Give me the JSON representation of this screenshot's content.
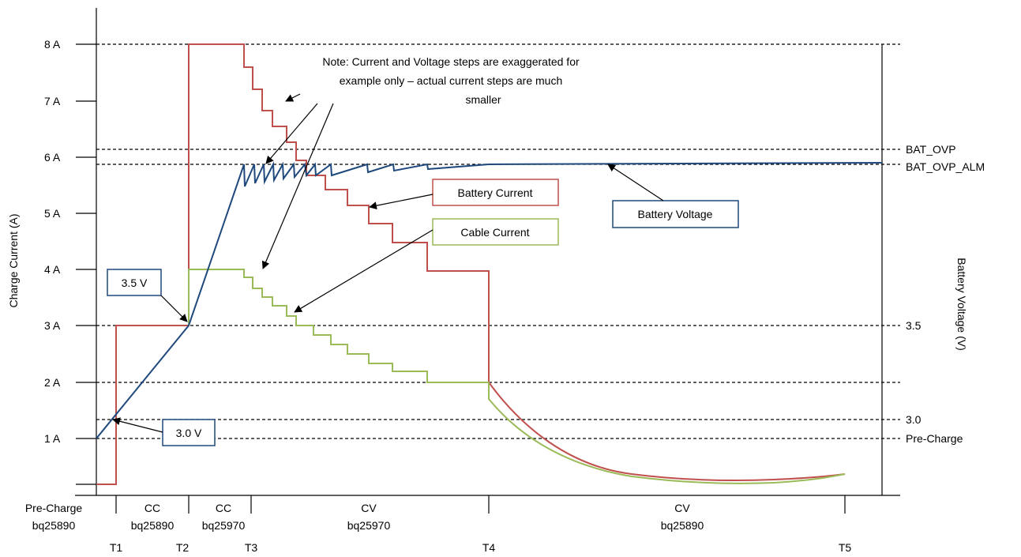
{
  "chart_data": {
    "type": "line",
    "y_label_left": "Charge Current (A)",
    "y_label_right": "Battery Voltage (V)",
    "y_ticks_left": [
      "8 A",
      "7 A",
      "6 A",
      "5 A",
      "4 A",
      "3 A",
      "2 A",
      "1 A"
    ],
    "right_labels": [
      "BAT_OVP",
      "BAT_OVP_ALM",
      "3.5",
      "3.0",
      "Pre-Charge"
    ],
    "phases": [
      {
        "line1": "Pre-Charge",
        "line2": "bq25890"
      },
      {
        "line1": "CC",
        "line2": "bq25890"
      },
      {
        "line1": "CC",
        "line2": "bq25970"
      },
      {
        "line1": "CV",
        "line2": "bq25970"
      },
      {
        "line1": "CV",
        "line2": "bq25890"
      }
    ],
    "time_labels": [
      "T1",
      "T2",
      "T3",
      "T4",
      "T5"
    ],
    "note": [
      "Note: Current and Voltage steps are exaggerated for",
      "example only – actual current steps are much",
      "smaller"
    ],
    "series": [
      {
        "name": "Battery Current",
        "color": "#c0504d"
      },
      {
        "name": "Cable Current",
        "color": "#9bbb59"
      },
      {
        "name": "Battery Voltage",
        "color": "#1f497d"
      }
    ],
    "callouts": {
      "v35": "3.5 V",
      "v30": "3.0 V"
    }
  }
}
